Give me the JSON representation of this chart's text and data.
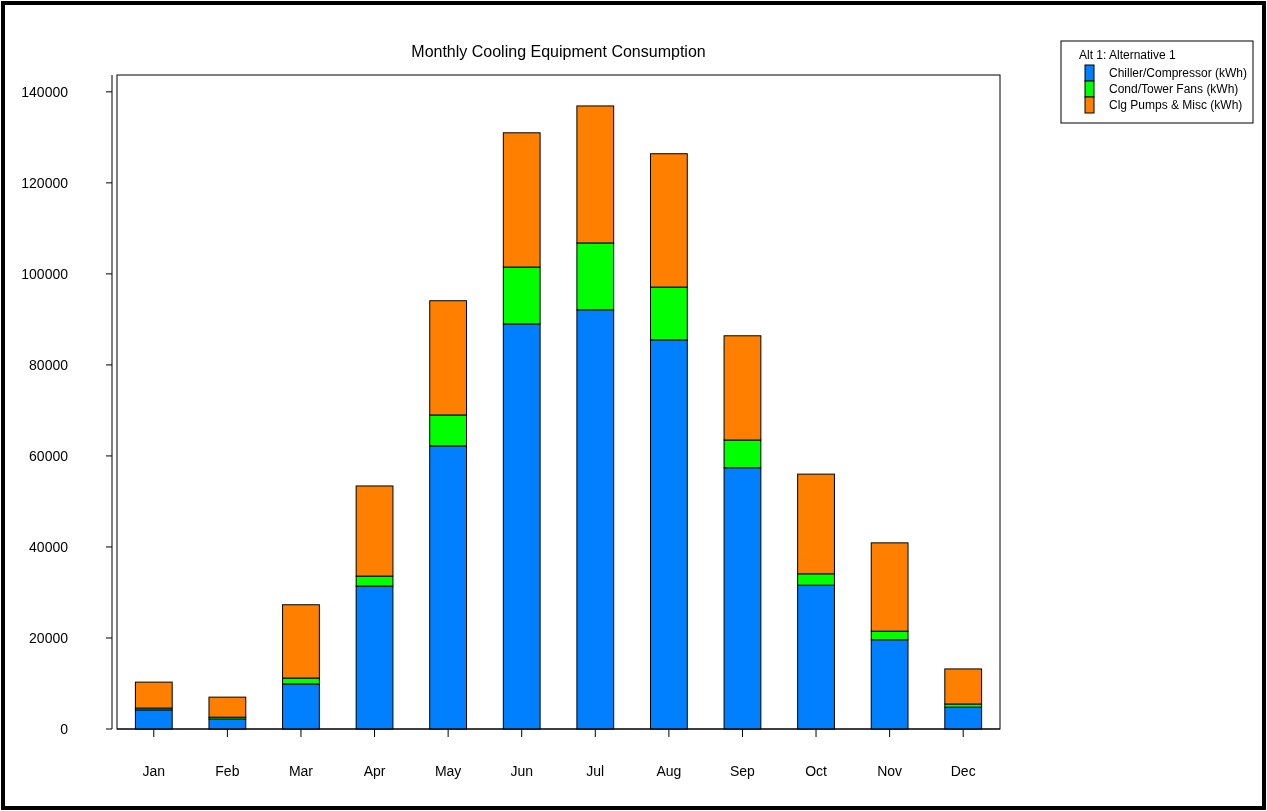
{
  "chart_data": {
    "type": "bar",
    "title": "Monthly Cooling Equipment Consumption",
    "legend_title": "Alt 1: Alternative 1",
    "stacked": true,
    "legend": "top right",
    "grid": false,
    "categories": [
      "Jan",
      "Feb",
      "Mar",
      "Apr",
      "May",
      "Jun",
      "Jul",
      "Aug",
      "Sep",
      "Oct",
      "Nov",
      "Dec"
    ],
    "ylim": [
      0,
      143700
    ],
    "yticks": [
      0,
      20000,
      40000,
      60000,
      80000,
      100000,
      120000,
      140000
    ],
    "series": [
      {
        "name": "Chiller/Compressor (kWh)",
        "color": "#0080ff",
        "values": [
          4200,
          2200,
          9900,
          31400,
          62200,
          89000,
          92100,
          85500,
          57400,
          31600,
          19600,
          4800
        ]
      },
      {
        "name": "Cond/Tower Fans (kWh)",
        "color": "#00ff00",
        "values": [
          400,
          400,
          1300,
          2200,
          6800,
          12500,
          14700,
          11600,
          6100,
          2500,
          1900,
          700
        ]
      },
      {
        "name": "Clg Pumps & Misc (kWh)",
        "color": "#ff8000",
        "values": [
          5700,
          4400,
          16100,
          19800,
          25100,
          29500,
          30100,
          29300,
          22900,
          21900,
          19400,
          7700
        ]
      }
    ]
  }
}
